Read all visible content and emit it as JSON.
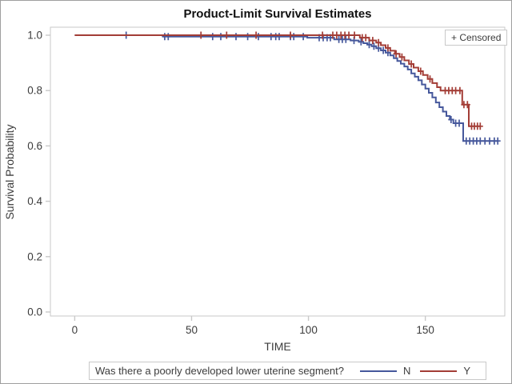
{
  "title": "Product-Limit Survival Estimates",
  "censored_box": {
    "label": "+ Censored"
  },
  "axes": {
    "y_label": "Survival Probability",
    "x_label": "TIME"
  },
  "legend": {
    "question": "Was there a poorly developed lower uterine segment?",
    "entries": [
      {
        "label": "N",
        "color": "#46589c"
      },
      {
        "label": "Y",
        "color": "#a33d36"
      }
    ]
  },
  "colors": {
    "frame": "#c9c9c9",
    "tick": "#c9c9c9",
    "text": "#3c3c3c",
    "series_n": "#46589c",
    "series_y": "#a33d36"
  },
  "chart_data": {
    "type": "line",
    "subtype": "kaplan-meier-step",
    "title": "Product-Limit Survival Estimates",
    "xlabel": "TIME",
    "ylabel": "Survival Probability",
    "xlim": [
      -10.4,
      184.0
    ],
    "ylim": [
      -0.0145,
      1.0289
    ],
    "x_tick_values": [
      0,
      50,
      100,
      150
    ],
    "x_tick_labels": [
      "0",
      "50",
      "100",
      "150"
    ],
    "y_tick_values": [
      1.0,
      0.8,
      0.6,
      0.4,
      0.2,
      0.0
    ],
    "y_tick_labels": [
      "1.0",
      "0.8",
      "0.6",
      "0.4",
      "0.2",
      "0.0"
    ],
    "grid": false,
    "legend_position": "bottom",
    "censored_marker": "+",
    "series": [
      {
        "name": "N",
        "color": "#46589c",
        "steps": [
          [
            0,
            1.0
          ],
          [
            38,
            0.995
          ],
          [
            99.5,
            0.991
          ],
          [
            111,
            0.985
          ],
          [
            118,
            0.981
          ],
          [
            121.5,
            0.976
          ],
          [
            123.5,
            0.971
          ],
          [
            125.2,
            0.966
          ],
          [
            127,
            0.96
          ],
          [
            129,
            0.953
          ],
          [
            131,
            0.945
          ],
          [
            133,
            0.937
          ],
          [
            135,
            0.927
          ],
          [
            136.5,
            0.917
          ],
          [
            138,
            0.907
          ],
          [
            139.5,
            0.897
          ],
          [
            141,
            0.887
          ],
          [
            142.5,
            0.876
          ],
          [
            144,
            0.862
          ],
          [
            145.5,
            0.85
          ],
          [
            147,
            0.837
          ],
          [
            148.5,
            0.822
          ],
          [
            150,
            0.807
          ],
          [
            151.5,
            0.792
          ],
          [
            153,
            0.775
          ],
          [
            154.5,
            0.757
          ],
          [
            156,
            0.74
          ],
          [
            157.5,
            0.724
          ],
          [
            159,
            0.708
          ],
          [
            160.5,
            0.695
          ],
          [
            162,
            0.682
          ],
          [
            166.2,
            0.618
          ],
          [
            181.3,
            0.618
          ]
        ],
        "censors": [
          [
            22,
            1.0
          ],
          [
            38.5,
            0.995
          ],
          [
            40,
            0.995
          ],
          [
            59,
            0.995
          ],
          [
            62.5,
            0.995
          ],
          [
            69,
            0.995
          ],
          [
            74,
            0.995
          ],
          [
            78.6,
            0.995
          ],
          [
            84,
            0.995
          ],
          [
            86,
            0.995
          ],
          [
            87.5,
            0.995
          ],
          [
            92.3,
            0.995
          ],
          [
            93.7,
            0.995
          ],
          [
            97.8,
            0.995
          ],
          [
            104.6,
            0.991
          ],
          [
            106.3,
            0.991
          ],
          [
            108,
            0.991
          ],
          [
            109.4,
            0.991
          ],
          [
            113,
            0.985
          ],
          [
            114.5,
            0.985
          ],
          [
            116,
            0.985
          ],
          [
            119.5,
            0.981
          ],
          [
            122.5,
            0.976
          ],
          [
            126,
            0.966
          ],
          [
            128,
            0.96
          ],
          [
            130,
            0.953
          ],
          [
            132,
            0.945
          ],
          [
            134,
            0.937
          ],
          [
            161,
            0.695
          ],
          [
            163,
            0.682
          ],
          [
            164.5,
            0.682
          ],
          [
            167.5,
            0.618
          ],
          [
            169,
            0.618
          ],
          [
            170.5,
            0.618
          ],
          [
            172,
            0.618
          ],
          [
            173.5,
            0.618
          ],
          [
            175.5,
            0.618
          ],
          [
            177.5,
            0.618
          ],
          [
            179.5,
            0.618
          ],
          [
            181,
            0.618
          ]
        ]
      },
      {
        "name": "Y",
        "color": "#a33d36",
        "steps": [
          [
            0,
            1.0
          ],
          [
            122,
            0.991
          ],
          [
            126,
            0.981
          ],
          [
            129,
            0.973
          ],
          [
            131,
            0.964
          ],
          [
            133,
            0.954
          ],
          [
            135,
            0.944
          ],
          [
            137,
            0.933
          ],
          [
            139,
            0.921
          ],
          [
            141,
            0.909
          ],
          [
            143,
            0.896
          ],
          [
            145,
            0.883
          ],
          [
            147,
            0.87
          ],
          [
            149,
            0.856
          ],
          [
            151,
            0.842
          ],
          [
            153,
            0.827
          ],
          [
            155,
            0.812
          ],
          [
            156.5,
            0.8
          ],
          [
            165.8,
            0.749
          ],
          [
            168.6,
            0.671
          ],
          [
            173.7,
            0.671
          ]
        ],
        "censors": [
          [
            54,
            1.0
          ],
          [
            65,
            1.0
          ],
          [
            77.6,
            1.0
          ],
          [
            92.3,
            1.0
          ],
          [
            106,
            1.0
          ],
          [
            110.4,
            1.0
          ],
          [
            112.1,
            1.0
          ],
          [
            113.9,
            1.0
          ],
          [
            115.6,
            1.0
          ],
          [
            117.3,
            1.0
          ],
          [
            119.7,
            1.0
          ],
          [
            123,
            0.991
          ],
          [
            124.5,
            0.991
          ],
          [
            127.5,
            0.981
          ],
          [
            130,
            0.973
          ],
          [
            134,
            0.954
          ],
          [
            137.5,
            0.933
          ],
          [
            140,
            0.921
          ],
          [
            144,
            0.896
          ],
          [
            148,
            0.87
          ],
          [
            152,
            0.842
          ],
          [
            158.5,
            0.8
          ],
          [
            160,
            0.8
          ],
          [
            161.5,
            0.8
          ],
          [
            163,
            0.8
          ],
          [
            164.8,
            0.8
          ],
          [
            166.5,
            0.749
          ],
          [
            168,
            0.749
          ],
          [
            169.8,
            0.671
          ],
          [
            171,
            0.671
          ],
          [
            172.3,
            0.671
          ],
          [
            173.5,
            0.671
          ]
        ]
      }
    ]
  }
}
